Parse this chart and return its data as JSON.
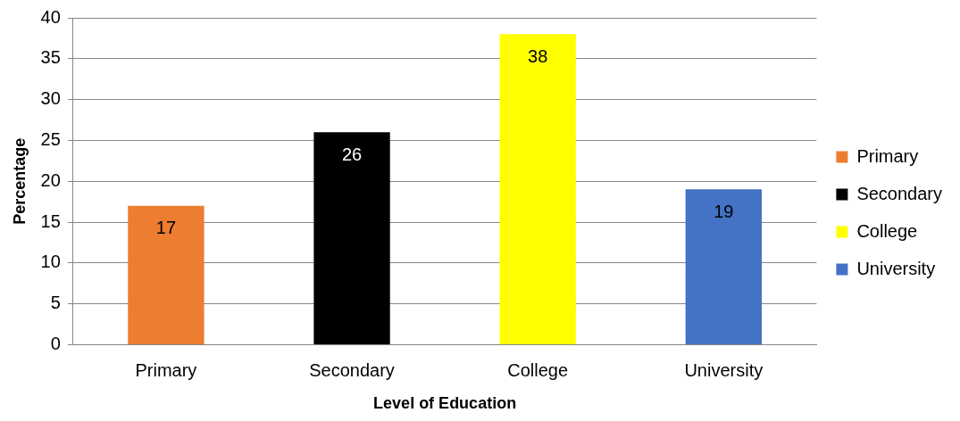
{
  "chart_data": {
    "type": "bar",
    "xlabel": "Level of Education",
    "ylabel": "Percentage",
    "categories": [
      "Primary",
      "Secondary",
      "College",
      "University"
    ],
    "series": [
      {
        "name": "Primary",
        "color": "#ed7d31",
        "values": [
          17,
          null,
          null,
          null
        ]
      },
      {
        "name": "Secondary",
        "color": "#000000",
        "values": [
          null,
          26,
          null,
          null
        ]
      },
      {
        "name": "College",
        "color": "#ffff00",
        "values": [
          null,
          null,
          38,
          null
        ]
      },
      {
        "name": "University",
        "color": "#4472c4",
        "values": [
          null,
          null,
          null,
          19
        ]
      }
    ],
    "ylim": [
      0,
      40
    ],
    "yticks": [
      0,
      5,
      10,
      15,
      20,
      25,
      30,
      35,
      40
    ],
    "grid": "y",
    "legend": "right",
    "data_labels": true
  }
}
